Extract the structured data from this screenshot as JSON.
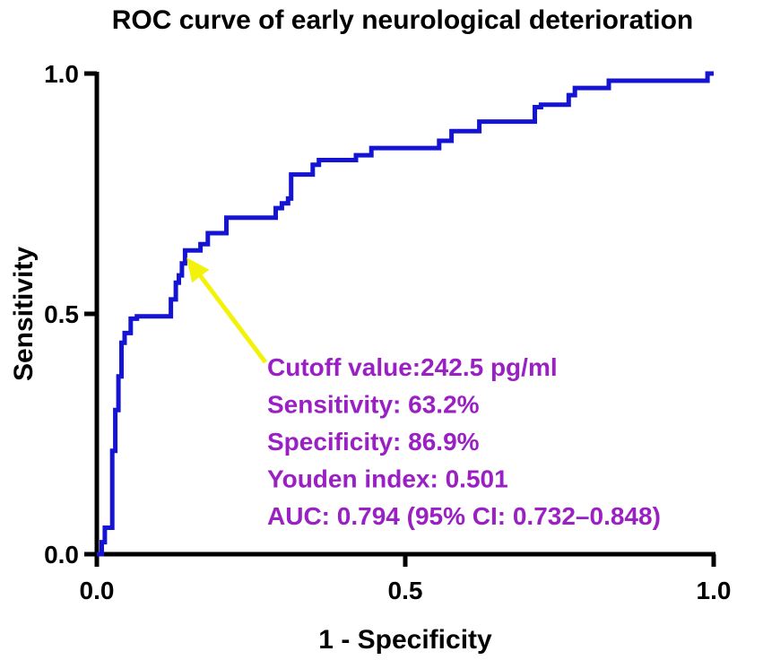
{
  "chart_data": {
    "type": "line",
    "title": "ROC curve of early neurological deterioration",
    "xlabel": "1 - Specificity",
    "ylabel": "Sensitivity",
    "xlim": [
      0,
      1
    ],
    "ylim": [
      0,
      1
    ],
    "x_ticks": [
      "0.0",
      "0.5",
      "1.0"
    ],
    "y_ticks": [
      "0.0",
      "0.5",
      "1.0"
    ],
    "grid": false,
    "series": [
      {
        "name": "ROC",
        "color": "#1414d2",
        "x": [
          0,
          0.008,
          0.008,
          0.013,
          0.013,
          0.025,
          0.025,
          0.03,
          0.03,
          0.035,
          0.035,
          0.04,
          0.04,
          0.045,
          0.045,
          0.055,
          0.055,
          0.065,
          0.065,
          0.12,
          0.12,
          0.128,
          0.128,
          0.133,
          0.133,
          0.138,
          0.138,
          0.143,
          0.143,
          0.168,
          0.168,
          0.18,
          0.18,
          0.21,
          0.21,
          0.29,
          0.29,
          0.3,
          0.3,
          0.31,
          0.31,
          0.315,
          0.315,
          0.35,
          0.35,
          0.36,
          0.36,
          0.42,
          0.42,
          0.445,
          0.445,
          0.555,
          0.555,
          0.575,
          0.575,
          0.62,
          0.62,
          0.71,
          0.71,
          0.72,
          0.72,
          0.765,
          0.765,
          0.775,
          0.775,
          0.83,
          0.83,
          0.99,
          0.99,
          1.0
        ],
        "y": [
          0,
          0,
          0.025,
          0.025,
          0.055,
          0.055,
          0.215,
          0.215,
          0.3,
          0.3,
          0.37,
          0.37,
          0.44,
          0.44,
          0.46,
          0.46,
          0.49,
          0.49,
          0.495,
          0.495,
          0.53,
          0.53,
          0.565,
          0.565,
          0.58,
          0.58,
          0.605,
          0.605,
          0.632,
          0.632,
          0.645,
          0.645,
          0.668,
          0.668,
          0.7,
          0.7,
          0.72,
          0.72,
          0.73,
          0.73,
          0.74,
          0.74,
          0.79,
          0.79,
          0.81,
          0.81,
          0.82,
          0.82,
          0.83,
          0.83,
          0.845,
          0.845,
          0.86,
          0.86,
          0.88,
          0.88,
          0.9,
          0.9,
          0.93,
          0.93,
          0.935,
          0.935,
          0.955,
          0.955,
          0.97,
          0.97,
          0.985,
          0.985,
          1.0,
          1.0
        ]
      }
    ],
    "optimal_point": {
      "x": 0.131,
      "y": 0.632
    },
    "annotations": [
      {
        "text": "Cutoff value:242.5 pg/ml"
      },
      {
        "text": "Sensitivity: 63.2%"
      },
      {
        "text": "Specificity: 86.9%"
      },
      {
        "text": "Youden index: 0.501"
      },
      {
        "text": "AUC: 0.794 (95% CI: 0.732–0.848)"
      }
    ],
    "annotation_color": "#9a20c4",
    "arrow_color": "#f2f20a",
    "axis_color": "#000000"
  }
}
